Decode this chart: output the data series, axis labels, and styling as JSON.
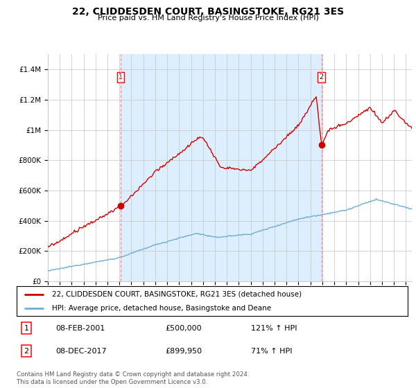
{
  "title": "22, CLIDDESDEN COURT, BASINGSTOKE, RG21 3ES",
  "subtitle": "Price paid vs. HM Land Registry's House Price Index (HPI)",
  "ylabel_ticks": [
    "£0",
    "£200K",
    "£400K",
    "£600K",
    "£800K",
    "£1M",
    "£1.2M",
    "£1.4M"
  ],
  "ytick_values": [
    0,
    200000,
    400000,
    600000,
    800000,
    1000000,
    1200000,
    1400000
  ],
  "ylim": [
    0,
    1500000
  ],
  "xlim_start": 1995.0,
  "xlim_end": 2025.5,
  "sale1_x": 2001.1,
  "sale1_y": 500000,
  "sale2_x": 2017.93,
  "sale2_y": 899950,
  "legend_line1": "22, CLIDDESDEN COURT, BASINGSTOKE, RG21 3ES (detached house)",
  "legend_line2": "HPI: Average price, detached house, Basingstoke and Deane",
  "footer": "Contains HM Land Registry data © Crown copyright and database right 2024.\nThis data is licensed under the Open Government Licence v3.0.",
  "hpi_color": "#6baed6",
  "price_color": "#cc0000",
  "vline_color": "#ff8888",
  "shade_color": "#ddeeff",
  "bg_color": "#ffffff",
  "grid_color": "#cccccc"
}
